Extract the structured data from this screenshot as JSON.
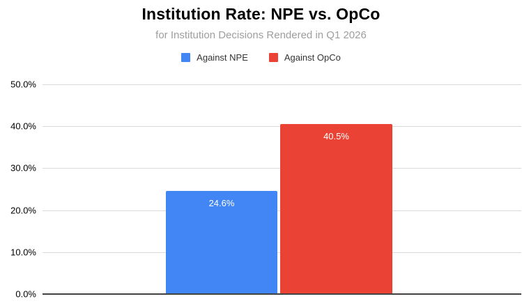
{
  "chart_data": {
    "type": "bar",
    "title": "Institution Rate: NPE vs. OpCo",
    "subtitle": "for Institution Decisions Rendered in Q1 2026",
    "categories": [
      ""
    ],
    "series": [
      {
        "name": "Against NPE",
        "color": "#4285F4",
        "values": [
          24.6
        ],
        "data_label": "24.6%"
      },
      {
        "name": "Against OpCo",
        "color": "#EA4335",
        "values": [
          40.5
        ],
        "data_label": "40.5%"
      }
    ],
    "xlabel": "",
    "ylabel": "",
    "ylim": [
      0,
      50
    ],
    "yticks": [
      "50.0%",
      "40.0%",
      "30.0%",
      "20.0%",
      "10.0%",
      "0.0%"
    ],
    "grid": true,
    "legend_position": "top",
    "colors": {
      "grid": "#dadada",
      "baseline": "#424242",
      "subtitle": "#9e9e9e",
      "value_label": "#ffffff"
    }
  }
}
